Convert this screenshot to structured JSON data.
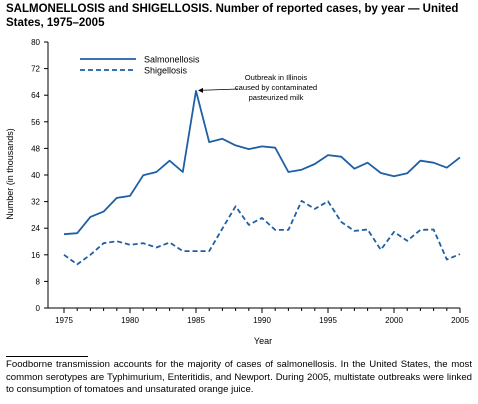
{
  "title": "SALMONELLOSIS and SHIGELLOSIS. Number of reported cases, by year — United States, 1975–2005",
  "footnote": "Foodborne transmission accounts for the majority of cases of salmonellosis. In the United States, the most common serotypes are Typhimurium, Enteritidis, and Newport. During 2005, multistate outbreaks were linked to consumption of tomatoes and unsaturated orange juice.",
  "colors": {
    "salmonellosis": "#1f5fa6",
    "shigellosis": "#1f5fa6",
    "axis": "#000000"
  },
  "chart_data": {
    "type": "line",
    "xlabel": "Year",
    "ylabel": "Number (in thousands)",
    "xlim": [
      1975,
      2005
    ],
    "ylim": [
      0,
      80
    ],
    "x_ticks": [
      1975,
      1980,
      1985,
      1990,
      1995,
      2000,
      2005
    ],
    "y_ticks": [
      0,
      8,
      16,
      24,
      32,
      40,
      48,
      56,
      64,
      72,
      80
    ],
    "legend_position": "top-left",
    "grid": false,
    "x": [
      1975,
      1976,
      1977,
      1978,
      1979,
      1980,
      1981,
      1982,
      1983,
      1984,
      1985,
      1986,
      1987,
      1988,
      1989,
      1990,
      1991,
      1992,
      1993,
      1994,
      1995,
      1996,
      1997,
      1998,
      1999,
      2000,
      2001,
      2002,
      2003,
      2004,
      2005
    ],
    "series": [
      {
        "name": "Salmonellosis",
        "style": "solid",
        "values": [
          22.2,
          22.5,
          27.4,
          29.0,
          33.1,
          33.7,
          39.9,
          40.9,
          44.3,
          40.9,
          65.3,
          49.9,
          50.9,
          48.9,
          47.8,
          48.6,
          48.2,
          40.9,
          41.6,
          43.3,
          46.0,
          45.5,
          41.9,
          43.7,
          40.6,
          39.6,
          40.5,
          44.3,
          43.7,
          42.2,
          45.3
        ]
      },
      {
        "name": "Shigellosis",
        "style": "dashed",
        "values": [
          16.0,
          13.1,
          16.0,
          19.5,
          20.1,
          19.0,
          19.5,
          18.2,
          19.7,
          17.1,
          17.1,
          17.1,
          23.9,
          30.6,
          25.0,
          27.1,
          23.5,
          23.5,
          32.2,
          29.8,
          32.1,
          25.9,
          23.2,
          23.6,
          17.5,
          22.9,
          20.2,
          23.5,
          23.6,
          14.6,
          16.2
        ]
      }
    ],
    "annotations": [
      {
        "text": "Outbreak in Illinois caused by contaminated pasteurized milk",
        "lines": [
          "Outbreak in Illinois",
          "caused by contaminated",
          "pasteurized milk"
        ],
        "x": 1985,
        "y": 65.3
      }
    ]
  }
}
